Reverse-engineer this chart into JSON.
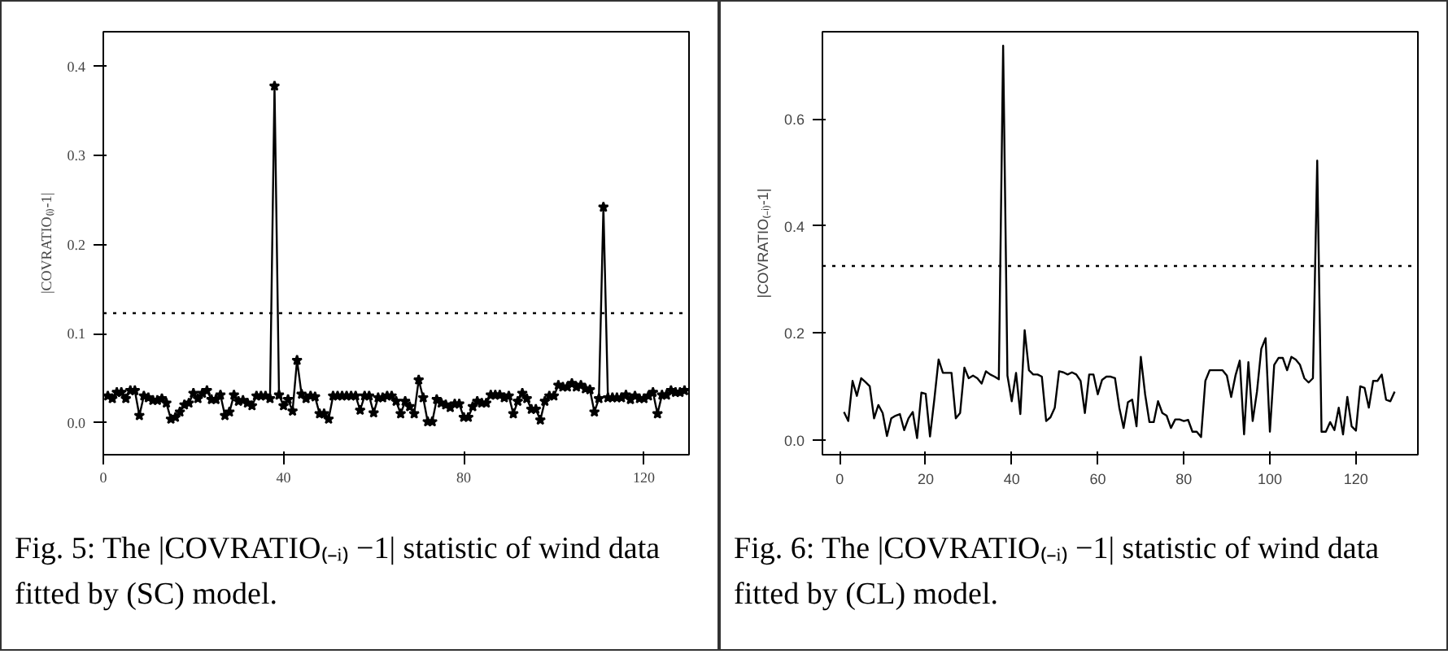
{
  "chart_data": [
    {
      "type": "line",
      "title": "Fig. 5: The |COVRATIO₍₋ᵢ₎ −1| statistic of wind data fitted by (SC) model.",
      "ylabel": "|COVRATIO₍ᵢ₎-1|",
      "marker": "star",
      "line_style": "solid",
      "grid": false,
      "xlim": [
        0,
        130
      ],
      "ylim": [
        -0.036,
        0.439
      ],
      "xticks": [
        0,
        40,
        80,
        120
      ],
      "yticks": [
        {
          "value": 0,
          "label": "0.0"
        },
        0.1,
        0.2,
        0.3,
        0.4
      ],
      "ref_lines": [
        {
          "axis": "y",
          "value": 0.123,
          "line_style": "dotted",
          "color": "#000000"
        }
      ],
      "series": [
        {
          "color": "#000000",
          "x": [
            1,
            2,
            3,
            4,
            5,
            6,
            7,
            8,
            9,
            10,
            11,
            12,
            13,
            14,
            15,
            16,
            17,
            18,
            19,
            20,
            21,
            22,
            23,
            24,
            25,
            26,
            27,
            28,
            29,
            30,
            31,
            32,
            33,
            34,
            35,
            36,
            37,
            38,
            39,
            40,
            41,
            42,
            43,
            44,
            45,
            46,
            47,
            48,
            49,
            50,
            51,
            52,
            53,
            54,
            55,
            56,
            57,
            58,
            59,
            60,
            61,
            62,
            63,
            64,
            65,
            66,
            67,
            68,
            69,
            70,
            71,
            72,
            73,
            74,
            75,
            76,
            77,
            78,
            79,
            80,
            81,
            82,
            83,
            84,
            85,
            86,
            87,
            88,
            89,
            90,
            91,
            92,
            93,
            94,
            95,
            96,
            97,
            98,
            99,
            100,
            101,
            102,
            103,
            104,
            105,
            106,
            107,
            108,
            109,
            110,
            111,
            112,
            113,
            114,
            115,
            116,
            117,
            118,
            119,
            120,
            121,
            122,
            123,
            124,
            125,
            126,
            127,
            128,
            129
          ],
          "values": [
            0.03,
            0.027,
            0.034,
            0.034,
            0.027,
            0.036,
            0.036,
            0.008,
            0.03,
            0.028,
            0.025,
            0.025,
            0.027,
            0.022,
            0.004,
            0.006,
            0.012,
            0.02,
            0.022,
            0.033,
            0.027,
            0.033,
            0.036,
            0.026,
            0.026,
            0.031,
            0.008,
            0.012,
            0.031,
            0.024,
            0.025,
            0.022,
            0.019,
            0.03,
            0.03,
            0.03,
            0.027,
            0.378,
            0.031,
            0.019,
            0.026,
            0.013,
            0.07,
            0.032,
            0.027,
            0.03,
            0.029,
            0.01,
            0.01,
            0.004,
            0.03,
            0.03,
            0.03,
            0.03,
            0.03,
            0.03,
            0.014,
            0.03,
            0.03,
            0.011,
            0.028,
            0.028,
            0.03,
            0.03,
            0.024,
            0.01,
            0.024,
            0.018,
            0.01,
            0.048,
            0.028,
            0.001,
            0.001,
            0.026,
            0.022,
            0.02,
            0.017,
            0.021,
            0.021,
            0.006,
            0.006,
            0.018,
            0.024,
            0.022,
            0.022,
            0.031,
            0.031,
            0.031,
            0.028,
            0.03,
            0.01,
            0.024,
            0.033,
            0.027,
            0.015,
            0.015,
            0.003,
            0.024,
            0.03,
            0.03,
            0.042,
            0.04,
            0.04,
            0.044,
            0.04,
            0.042,
            0.038,
            0.037,
            0.012,
            0.027,
            0.242,
            0.028,
            0.028,
            0.028,
            0.028,
            0.031,
            0.026,
            0.03,
            0.027,
            0.027,
            0.03,
            0.034,
            0.01,
            0.031,
            0.031,
            0.036,
            0.034,
            0.034,
            0.036
          ]
        }
      ]
    },
    {
      "type": "line",
      "title": "Fig. 6: The |COVRATIO₍₋ᵢ₎ −1| statistic of wind data fitted by (CL) model.",
      "ylabel": "|COVRATIO₍₋ᵢ₎-1|",
      "line_style": "solid",
      "grid": false,
      "xlim": [
        -4,
        134.4
      ],
      "ylim": [
        -0.028,
        0.763
      ],
      "xticks": [
        0,
        20,
        40,
        60,
        80,
        100,
        120
      ],
      "yticks": [
        {
          "value": 0,
          "label": "0.0"
        },
        0.2,
        0.4,
        0.6
      ],
      "ref_lines": [
        {
          "axis": "y",
          "value": 0.325,
          "line_style": "dotted",
          "color": "#000000"
        }
      ],
      "series": [
        {
          "color": "#000000",
          "x": [
            1,
            2,
            3,
            4,
            5,
            6,
            7,
            8,
            9,
            10,
            11,
            12,
            13,
            14,
            15,
            16,
            17,
            18,
            19,
            20,
            21,
            22,
            23,
            24,
            25,
            26,
            27,
            28,
            29,
            30,
            31,
            32,
            33,
            34,
            35,
            36,
            37,
            38,
            39,
            40,
            41,
            42,
            43,
            44,
            45,
            46,
            47,
            48,
            49,
            50,
            51,
            52,
            53,
            54,
            55,
            56,
            57,
            58,
            59,
            60,
            61,
            62,
            63,
            64,
            65,
            66,
            67,
            68,
            69,
            70,
            71,
            72,
            73,
            74,
            75,
            76,
            77,
            78,
            79,
            80,
            81,
            82,
            83,
            84,
            85,
            86,
            87,
            88,
            89,
            90,
            91,
            92,
            93,
            94,
            95,
            96,
            97,
            98,
            99,
            100,
            101,
            102,
            103,
            104,
            105,
            106,
            107,
            108,
            109,
            110,
            111,
            112,
            113,
            114,
            115,
            116,
            117,
            118,
            119,
            120,
            121,
            122,
            123,
            124,
            125,
            126,
            127,
            128,
            129
          ],
          "values": [
            0.052,
            0.035,
            0.11,
            0.082,
            0.115,
            0.108,
            0.1,
            0.04,
            0.065,
            0.05,
            0.007,
            0.04,
            0.045,
            0.048,
            0.018,
            0.04,
            0.052,
            0.003,
            0.088,
            0.086,
            0.006,
            0.075,
            0.15,
            0.125,
            0.125,
            0.125,
            0.04,
            0.05,
            0.135,
            0.115,
            0.12,
            0.115,
            0.105,
            0.128,
            0.122,
            0.118,
            0.113,
            0.737,
            0.12,
            0.072,
            0.125,
            0.048,
            0.205,
            0.13,
            0.122,
            0.122,
            0.118,
            0.035,
            0.042,
            0.06,
            0.128,
            0.126,
            0.122,
            0.126,
            0.122,
            0.11,
            0.05,
            0.122,
            0.122,
            0.085,
            0.112,
            0.118,
            0.118,
            0.115,
            0.06,
            0.022,
            0.07,
            0.075,
            0.025,
            0.155,
            0.085,
            0.033,
            0.033,
            0.072,
            0.05,
            0.045,
            0.022,
            0.038,
            0.038,
            0.035,
            0.037,
            0.015,
            0.015,
            0.005,
            0.11,
            0.13,
            0.13,
            0.13,
            0.13,
            0.12,
            0.08,
            0.12,
            0.148,
            0.01,
            0.145,
            0.035,
            0.09,
            0.17,
            0.19,
            0.015,
            0.14,
            0.153,
            0.153,
            0.13,
            0.155,
            0.15,
            0.14,
            0.115,
            0.107,
            0.115,
            0.522,
            0.015,
            0.015,
            0.033,
            0.018,
            0.06,
            0.01,
            0.08,
            0.025,
            0.017,
            0.1,
            0.097,
            0.06,
            0.11,
            0.11,
            0.122,
            0.075,
            0.072,
            0.09
          ]
        }
      ]
    }
  ]
}
